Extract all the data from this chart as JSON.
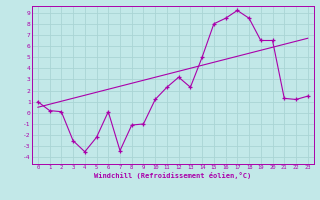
{
  "xlabel": "Windchill (Refroidissement éolien,°C)",
  "xlim": [
    -0.5,
    23.5
  ],
  "ylim": [
    -4.6,
    9.6
  ],
  "xticks": [
    0,
    1,
    2,
    3,
    4,
    5,
    6,
    7,
    8,
    9,
    10,
    11,
    12,
    13,
    14,
    15,
    16,
    17,
    18,
    19,
    20,
    21,
    22,
    23
  ],
  "yticks": [
    -4,
    -3,
    -2,
    -1,
    0,
    1,
    2,
    3,
    4,
    5,
    6,
    7,
    8,
    9
  ],
  "bg_color": "#c2e8e8",
  "grid_color": "#aad4d4",
  "line_color": "#aa00aa",
  "curve1_x": [
    0,
    1,
    2,
    3,
    4,
    5,
    6,
    7,
    8,
    9,
    10,
    11,
    12,
    13,
    14,
    15,
    16,
    17,
    18,
    19,
    20,
    21,
    22,
    23
  ],
  "curve1_y": [
    1.0,
    0.2,
    0.1,
    -2.5,
    -3.5,
    -2.2,
    0.1,
    -3.4,
    -1.1,
    -1.0,
    1.2,
    2.3,
    3.2,
    2.3,
    5.0,
    8.0,
    8.5,
    9.2,
    8.5,
    6.5,
    6.5,
    1.3,
    1.2,
    1.5
  ],
  "curve2_x": [
    0,
    23
  ],
  "curve2_y": [
    0.5,
    6.7
  ]
}
